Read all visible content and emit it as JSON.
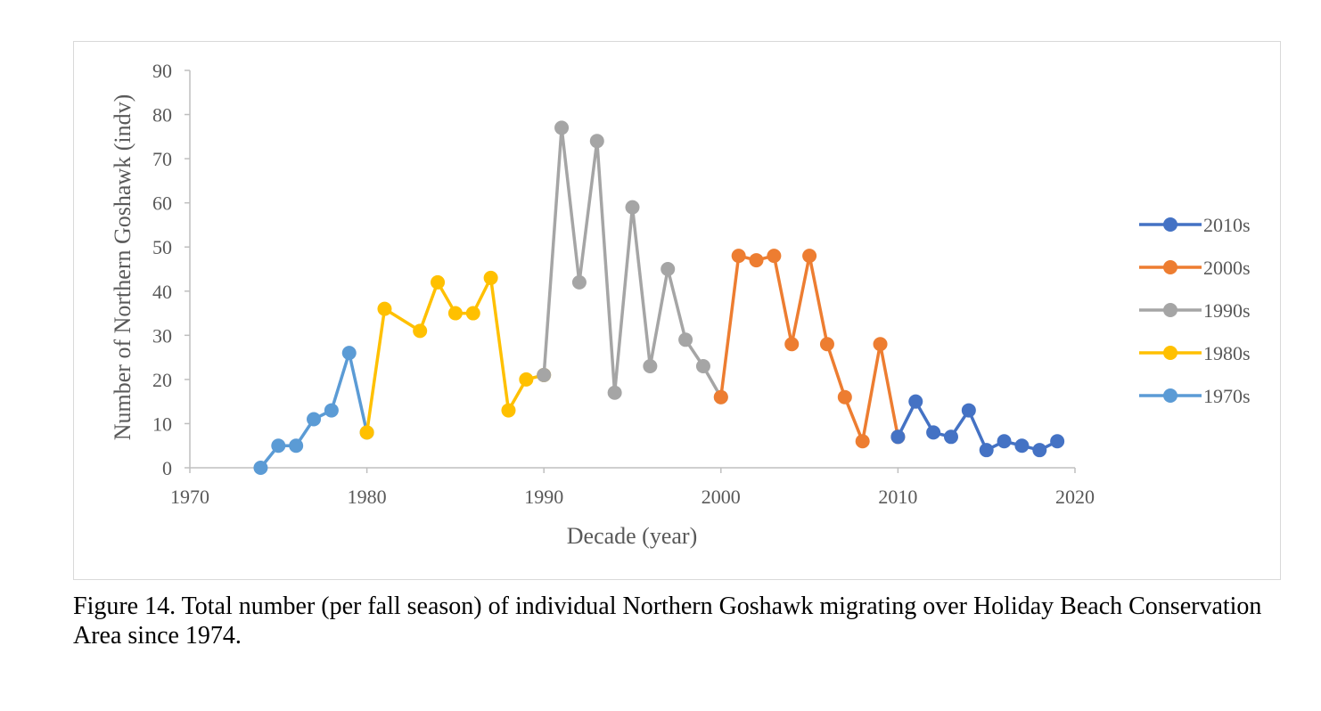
{
  "chart_data": {
    "type": "line",
    "xlabel": "Decade (year)",
    "ylabel": "Number of Northern Goshawk (indv)",
    "xlim": [
      1970,
      2020
    ],
    "ylim": [
      0,
      90
    ],
    "x_ticks": [
      1970,
      1980,
      1990,
      2000,
      2010,
      2020
    ],
    "y_ticks": [
      0,
      10,
      20,
      30,
      40,
      50,
      60,
      70,
      80,
      90
    ],
    "grid": false,
    "legend_position": "right",
    "series": [
      {
        "name": "2010s",
        "color": "#4472c4",
        "x": [
          2010,
          2011,
          2012,
          2013,
          2014,
          2015,
          2016,
          2017,
          2018,
          2019
        ],
        "y": [
          7,
          15,
          8,
          7,
          13,
          4,
          6,
          5,
          4,
          6
        ]
      },
      {
        "name": "2000s",
        "color": "#ed7d31",
        "x": [
          2000,
          2001,
          2002,
          2003,
          2004,
          2005,
          2006,
          2007,
          2008,
          2009,
          2010
        ],
        "y": [
          16,
          48,
          47,
          48,
          28,
          48,
          28,
          16,
          6,
          28,
          7
        ]
      },
      {
        "name": "1990s",
        "color": "#a5a5a5",
        "x": [
          1990,
          1991,
          1992,
          1993,
          1994,
          1995,
          1996,
          1997,
          1998,
          1999,
          2000
        ],
        "y": [
          21,
          77,
          42,
          74,
          17,
          59,
          23,
          45,
          29,
          23,
          16
        ]
      },
      {
        "name": "1980s",
        "color": "#ffc000",
        "x": [
          1980,
          1981,
          1983,
          1984,
          1985,
          1986,
          1987,
          1988,
          1989,
          1990
        ],
        "y": [
          8,
          36,
          31,
          42,
          35,
          35,
          43,
          13,
          20,
          21
        ]
      },
      {
        "name": "1970s",
        "color": "#5b9bd5",
        "x": [
          1974,
          1975,
          1976,
          1977,
          1978,
          1979,
          1980
        ],
        "y": [
          0,
          5,
          5,
          11,
          13,
          26,
          8
        ]
      }
    ]
  },
  "caption": "Figure 14. Total number (per fall season) of individual Northern Goshawk migrating over Holiday Beach Conservation Area since 1974."
}
